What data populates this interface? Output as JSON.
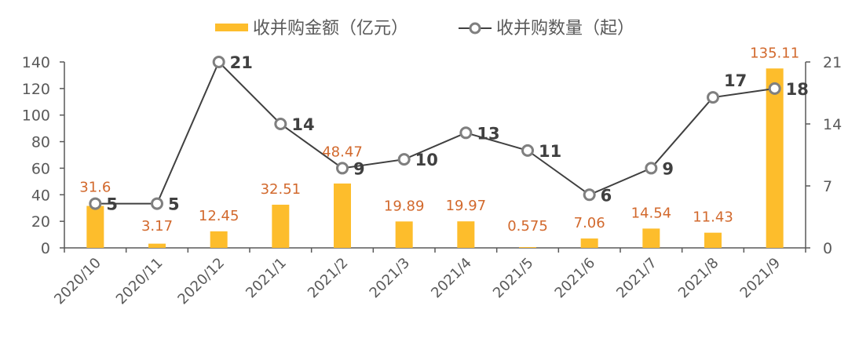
{
  "chart_data": {
    "type": "bar+line",
    "categories": [
      "2020/10",
      "2020/11",
      "2020/12",
      "2021/1",
      "2021/2",
      "2021/3",
      "2021/4",
      "2021/5",
      "2021/6",
      "2021/7",
      "2021/8",
      "2021/9"
    ],
    "series": [
      {
        "name": "收并购金额（亿元）",
        "type": "bar",
        "axis": "left",
        "color": "#fdbd2c",
        "values": [
          31.6,
          3.17,
          12.45,
          32.51,
          48.47,
          19.89,
          19.97,
          0.575,
          7.06,
          14.54,
          11.43,
          135.11
        ],
        "labels": [
          "31.6",
          "3.17",
          "12.45",
          "32.51",
          "48.47",
          "19.89",
          "19.97",
          "0.575",
          "7.06",
          "14.54",
          "11.43",
          "135.11"
        ]
      },
      {
        "name": "收并购数量（起）",
        "type": "line",
        "axis": "right",
        "color": "#404040",
        "marker_color": "#7f7f7f",
        "values": [
          5,
          5,
          21,
          14,
          9,
          10,
          13,
          11,
          6,
          9,
          17,
          18
        ]
      }
    ],
    "left_axis": {
      "ylim": [
        0,
        140
      ],
      "ticks": [
        "0",
        "20",
        "40",
        "60",
        "80",
        "100",
        "120",
        "140"
      ]
    },
    "right_axis": {
      "ylim": [
        0,
        21
      ],
      "ticks": [
        "0",
        "7",
        "14",
        "21"
      ]
    },
    "legend": "top-center",
    "grid": false,
    "amount_label_color": "#d2692d"
  }
}
